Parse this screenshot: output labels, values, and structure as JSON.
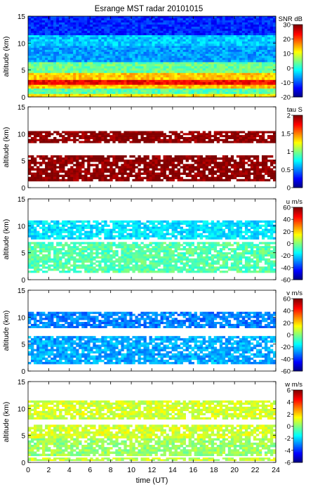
{
  "title": "Esrange MST radar 20101015",
  "chart_data": [
    {
      "type": "heatmap",
      "ylabel": "altitude (km)",
      "ylim": [
        0,
        15
      ],
      "yticks": [
        0,
        5,
        10,
        15
      ],
      "x": [
        0,
        24
      ],
      "colorbar_label": "SNR dB",
      "clim": [
        -20,
        30
      ],
      "cticks": [
        -20,
        -10,
        0,
        10,
        20,
        30
      ],
      "colormap": "jet",
      "layers": [
        {
          "ymin": 0.0,
          "ymax": 0.6,
          "value": 12
        },
        {
          "ymin": 0.6,
          "ymax": 1.6,
          "value": 3
        },
        {
          "ymin": 1.6,
          "ymax": 2.3,
          "value": 14
        },
        {
          "ymin": 2.3,
          "ymax": 3.2,
          "value": 24
        },
        {
          "ymin": 3.2,
          "ymax": 4.5,
          "value": 14
        },
        {
          "ymin": 4.5,
          "ymax": 6.5,
          "value": 4
        },
        {
          "ymin": 6.5,
          "ymax": 9.5,
          "value": -6
        },
        {
          "ymin": 9.5,
          "ymax": 11.5,
          "value": -4
        },
        {
          "ymin": 11.5,
          "ymax": 15.0,
          "value": -12
        }
      ]
    },
    {
      "type": "heatmap",
      "ylabel": "altitude (km)",
      "ylim": [
        0,
        15
      ],
      "yticks": [
        0,
        5,
        10,
        15
      ],
      "x": [
        0,
        24
      ],
      "colorbar_label": "tau S",
      "clim": [
        0,
        2
      ],
      "cticks": [
        0,
        0.5,
        1,
        1.5,
        2
      ],
      "colormap": "jet",
      "layers": [
        {
          "ymin": 1.2,
          "ymax": 6.0,
          "value": 2.0
        },
        {
          "ymin": 8.3,
          "ymax": 10.5,
          "value": 2.0
        }
      ]
    },
    {
      "type": "heatmap",
      "ylabel": "altitude (km)",
      "ylim": [
        0,
        15
      ],
      "yticks": [
        0,
        5,
        10,
        15
      ],
      "x": [
        0,
        24
      ],
      "colorbar_label": "u m/s",
      "clim": [
        -60,
        60
      ],
      "cticks": [
        -60,
        -40,
        -20,
        0,
        20,
        40,
        60
      ],
      "colormap": "jet",
      "layers": [
        {
          "ymin": 1.3,
          "ymax": 7.0,
          "value": -5
        },
        {
          "ymin": 7.5,
          "ymax": 11.0,
          "value": -18
        }
      ]
    },
    {
      "type": "heatmap",
      "ylabel": "altitude (km)",
      "ylim": [
        0,
        15
      ],
      "yticks": [
        0,
        5,
        10,
        15
      ],
      "x": [
        0,
        24
      ],
      "colorbar_label": "v m/s",
      "clim": [
        -60,
        60
      ],
      "cticks": [
        -60,
        -40,
        -20,
        0,
        20,
        40,
        60
      ],
      "colormap": "jet",
      "layers": [
        {
          "ymin": 1.3,
          "ymax": 6.5,
          "value": -25
        },
        {
          "ymin": 8.0,
          "ymax": 11.0,
          "value": -30
        }
      ]
    },
    {
      "type": "heatmap",
      "ylabel": "altitude (km)",
      "ylim": [
        0,
        15
      ],
      "yticks": [
        0,
        5,
        10,
        15
      ],
      "x": [
        0,
        24
      ],
      "xticks": [
        0,
        2,
        4,
        6,
        8,
        10,
        12,
        14,
        16,
        18,
        20,
        22,
        24
      ],
      "xlabel": "time (UT)",
      "colorbar_label": "w m/s",
      "clim": [
        -6,
        6
      ],
      "cticks": [
        -6,
        -4,
        -2,
        0,
        2,
        4,
        6
      ],
      "colormap": "jet",
      "layers": [
        {
          "ymin": 0.3,
          "ymax": 0.9,
          "value": 0.8
        },
        {
          "ymin": 1.2,
          "ymax": 4.5,
          "value": 0.3
        },
        {
          "ymin": 4.5,
          "ymax": 7.0,
          "value": 1.0
        },
        {
          "ymin": 8.0,
          "ymax": 11.5,
          "value": 1.0
        }
      ]
    }
  ]
}
